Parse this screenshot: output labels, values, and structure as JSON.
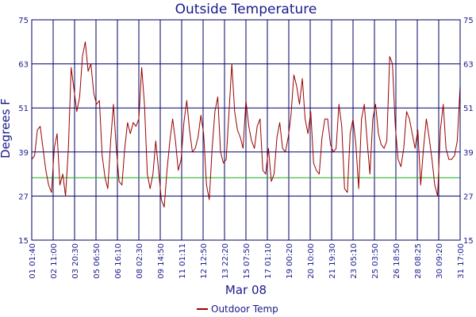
{
  "chart_data": {
    "type": "line",
    "title": "Outside Temperature",
    "ylabel": "Degrees F",
    "xlabel": "Mar 08",
    "ylim": [
      15,
      75
    ],
    "yticks": [
      15,
      27,
      39,
      51,
      63,
      75
    ],
    "xticks": [
      "01 01:40",
      "02 11:00",
      "03 20:30",
      "05 06:50",
      "06 16:10",
      "08 02:30",
      "09 14:50",
      "11 01:11",
      "12 12:50",
      "13 22:20",
      "15 07:50",
      "17 01:10",
      "19 00:20",
      "20 10:00",
      "21 19:30",
      "23 05:10",
      "25 03:50",
      "26 18:50",
      "28 08:25",
      "30 09:20",
      "31 17:00"
    ],
    "reference_line": {
      "value": 32,
      "color": "#22aa22"
    },
    "grid": true,
    "legend_position": "bottom-center",
    "colors": {
      "series": "#990000",
      "grid": "#000066",
      "text": "#1a1a8c"
    },
    "series": [
      {
        "name": "Outdoor Temp",
        "values": [
          37,
          38,
          45,
          46,
          40,
          34,
          30,
          28,
          40,
          44,
          30,
          33,
          27,
          40,
          62,
          56,
          50,
          54,
          65,
          69,
          61,
          63,
          55,
          52,
          53,
          38,
          32,
          29,
          42,
          52,
          40,
          31,
          30,
          40,
          47,
          44,
          47,
          46,
          48,
          62,
          52,
          33,
          29,
          33,
          42,
          34,
          26,
          24,
          34,
          42,
          48,
          42,
          34,
          37,
          47,
          53,
          45,
          39,
          40,
          43,
          49,
          44,
          30,
          26,
          40,
          50,
          54,
          39,
          36,
          37,
          50,
          63,
          50,
          45,
          43,
          40,
          53,
          46,
          42,
          40,
          46,
          48,
          34,
          33,
          40,
          31,
          33,
          43,
          47,
          40,
          39,
          43,
          49,
          60,
          57,
          52,
          59,
          48,
          44,
          50,
          36,
          34,
          33,
          43,
          48,
          48,
          41,
          39,
          40,
          52,
          46,
          29,
          28,
          44,
          48,
          41,
          29,
          48,
          52,
          42,
          33,
          48,
          52,
          44,
          41,
          40,
          42,
          65,
          63,
          46,
          37,
          35,
          40,
          50,
          48,
          44,
          40,
          45,
          30,
          40,
          48,
          43,
          37,
          30,
          27,
          45,
          52,
          40,
          37,
          37,
          38,
          42,
          57
        ]
      }
    ]
  }
}
